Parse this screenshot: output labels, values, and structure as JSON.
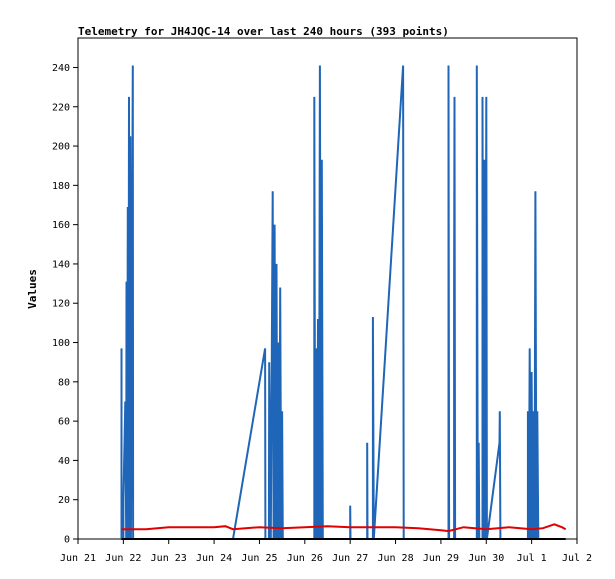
{
  "chart_data": {
    "type": "line",
    "title": "Telemetry for JH4JQC-14 over last 240 hours (393 points)",
    "xlabel": "",
    "ylabel": "Values",
    "ylim": [
      0,
      255
    ],
    "grid": false,
    "legend": "none",
    "xlim": [
      "2023-06-21",
      "2023-07-02"
    ],
    "x_ticks": [
      "Jun 21",
      "Jun 22",
      "Jun 23",
      "Jun 24",
      "Jun 25",
      "Jun 26",
      "Jun 27",
      "Jun 28",
      "Jun 29",
      "Jun 30",
      "Jul 1",
      "Jul 2"
    ],
    "y_ticks": [
      0,
      20,
      40,
      60,
      80,
      100,
      120,
      140,
      160,
      180,
      200,
      220,
      240
    ],
    "colors": {
      "series_blue": "#1f66b8",
      "series_red": "#e00000",
      "series_black": "#000000"
    },
    "series": [
      {
        "color": "#1f66b8",
        "points": [
          [
            "2023-06-21T23:00",
            0
          ],
          [
            "2023-06-21T23:00",
            97
          ],
          [
            "2023-06-21T23:01",
            0
          ],
          [
            "2023-06-22T00:00",
            0
          ],
          [
            "2023-06-22T00:00",
            20
          ],
          [
            "2023-06-22T01:00",
            70
          ],
          [
            "2023-06-22T01:30",
            0
          ],
          [
            "2023-06-22T01:40",
            131
          ],
          [
            "2023-06-22T02:00",
            0
          ],
          [
            "2023-06-22T02:20",
            169
          ],
          [
            "2023-06-22T02:40",
            0
          ],
          [
            "2023-06-22T03:00",
            225
          ],
          [
            "2023-06-22T03:20",
            0
          ],
          [
            "2023-06-22T03:40",
            205
          ],
          [
            "2023-06-22T04:00",
            0
          ],
          [
            "2023-06-22T05:00",
            241
          ],
          [
            "2023-06-22T05:10",
            0
          ],
          [
            "2023-06-24T10:00",
            0
          ],
          [
            "2023-06-25T03:00",
            97
          ],
          [
            "2023-06-25T03:10",
            0
          ],
          [
            "2023-06-25T05:00",
            0
          ],
          [
            "2023-06-25T05:10",
            90
          ],
          [
            "2023-06-25T06:00",
            0
          ],
          [
            "2023-06-25T07:00",
            177
          ],
          [
            "2023-06-25T07:30",
            0
          ],
          [
            "2023-06-25T08:00",
            160
          ],
          [
            "2023-06-25T08:30",
            0
          ],
          [
            "2023-06-25T09:00",
            140
          ],
          [
            "2023-06-25T09:30",
            0
          ],
          [
            "2023-06-25T10:00",
            100
          ],
          [
            "2023-06-25T10:30",
            0
          ],
          [
            "2023-06-25T11:00",
            128
          ],
          [
            "2023-06-25T11:30",
            0
          ],
          [
            "2023-06-25T12:00",
            65
          ],
          [
            "2023-06-25T12:20",
            0
          ],
          [
            "2023-06-26T05:00",
            0
          ],
          [
            "2023-06-26T05:00",
            225
          ],
          [
            "2023-06-26T05:30",
            0
          ],
          [
            "2023-06-26T06:00",
            97
          ],
          [
            "2023-06-26T06:30",
            0
          ],
          [
            "2023-06-26T07:00",
            112
          ],
          [
            "2023-06-26T07:30",
            0
          ],
          [
            "2023-06-26T08:00",
            241
          ],
          [
            "2023-06-26T08:30",
            0
          ],
          [
            "2023-06-26T09:00",
            193
          ],
          [
            "2023-06-26T09:30",
            0
          ],
          [
            "2023-06-27T00:00",
            0
          ],
          [
            "2023-06-27T00:00",
            17
          ],
          [
            "2023-06-27T00:10",
            0
          ],
          [
            "2023-06-27T09:00",
            0
          ],
          [
            "2023-06-27T09:00",
            49
          ],
          [
            "2023-06-27T09:10",
            0
          ],
          [
            "2023-06-27T12:00",
            0
          ],
          [
            "2023-06-27T12:00",
            113
          ],
          [
            "2023-06-27T12:30",
            0
          ],
          [
            "2023-06-28T04:00",
            241
          ],
          [
            "2023-06-28T04:20",
            0
          ],
          [
            "2023-06-29T04:00",
            0
          ],
          [
            "2023-06-29T04:00",
            241
          ],
          [
            "2023-06-29T04:20",
            0
          ],
          [
            "2023-06-29T07:00",
            0
          ],
          [
            "2023-06-29T07:00",
            128
          ],
          [
            "2023-06-29T07:10",
            225
          ],
          [
            "2023-06-29T07:30",
            0
          ],
          [
            "2023-06-29T19:00",
            0
          ],
          [
            "2023-06-29T19:00",
            241
          ],
          [
            "2023-06-29T19:30",
            0
          ],
          [
            "2023-06-29T20:00",
            49
          ],
          [
            "2023-06-29T20:20",
            0
          ],
          [
            "2023-06-29T22:00",
            0
          ],
          [
            "2023-06-29T22:00",
            225
          ],
          [
            "2023-06-29T22:30",
            0
          ],
          [
            "2023-06-29T23:00",
            193
          ],
          [
            "2023-06-29T23:30",
            0
          ],
          [
            "2023-06-30T00:00",
            225
          ],
          [
            "2023-06-30T00:20",
            0
          ],
          [
            "2023-06-30T07:00",
            49
          ],
          [
            "2023-06-30T07:10",
            65
          ],
          [
            "2023-06-30T07:30",
            0
          ],
          [
            "2023-06-30T22:00",
            0
          ],
          [
            "2023-06-30T22:00",
            65
          ],
          [
            "2023-06-30T22:30",
            0
          ],
          [
            "2023-06-30T23:00",
            97
          ],
          [
            "2023-06-30T23:30",
            0
          ],
          [
            "2023-07-01T00:00",
            85
          ],
          [
            "2023-07-01T00:30",
            0
          ],
          [
            "2023-07-01T01:00",
            65
          ],
          [
            "2023-07-01T01:30",
            0
          ],
          [
            "2023-07-01T02:00",
            177
          ],
          [
            "2023-07-01T02:30",
            0
          ],
          [
            "2023-07-01T03:00",
            65
          ],
          [
            "2023-07-01T03:30",
            0
          ]
        ]
      },
      {
        "color": "#e00000",
        "points": [
          [
            "2023-06-21T23:00",
            5
          ],
          [
            "2023-06-22T12:00",
            5
          ],
          [
            "2023-06-23T00:00",
            6
          ],
          [
            "2023-06-24T00:00",
            6
          ],
          [
            "2023-06-24T06:00",
            6.5
          ],
          [
            "2023-06-24T10:00",
            5
          ],
          [
            "2023-06-25T00:00",
            6
          ],
          [
            "2023-06-25T12:00",
            5.5
          ],
          [
            "2023-06-26T00:00",
            6
          ],
          [
            "2023-06-26T12:00",
            6.5
          ],
          [
            "2023-06-27T00:00",
            6
          ],
          [
            "2023-06-27T12:00",
            6
          ],
          [
            "2023-06-28T00:00",
            6
          ],
          [
            "2023-06-28T12:00",
            5.5
          ],
          [
            "2023-06-29T00:00",
            4.5
          ],
          [
            "2023-06-29T04:00",
            4
          ],
          [
            "2023-06-29T12:00",
            6
          ],
          [
            "2023-06-30T00:00",
            5
          ],
          [
            "2023-06-30T12:00",
            6
          ],
          [
            "2023-07-01T00:00",
            5
          ],
          [
            "2023-07-01T06:00",
            5.5
          ],
          [
            "2023-07-01T12:00",
            7.5
          ],
          [
            "2023-07-01T16:00",
            6
          ],
          [
            "2023-07-01T18:00",
            5
          ]
        ]
      },
      {
        "color": "#000000",
        "points": [
          [
            "2023-06-21T23:00",
            0
          ],
          [
            "2023-07-01T18:00",
            0
          ]
        ]
      }
    ]
  }
}
